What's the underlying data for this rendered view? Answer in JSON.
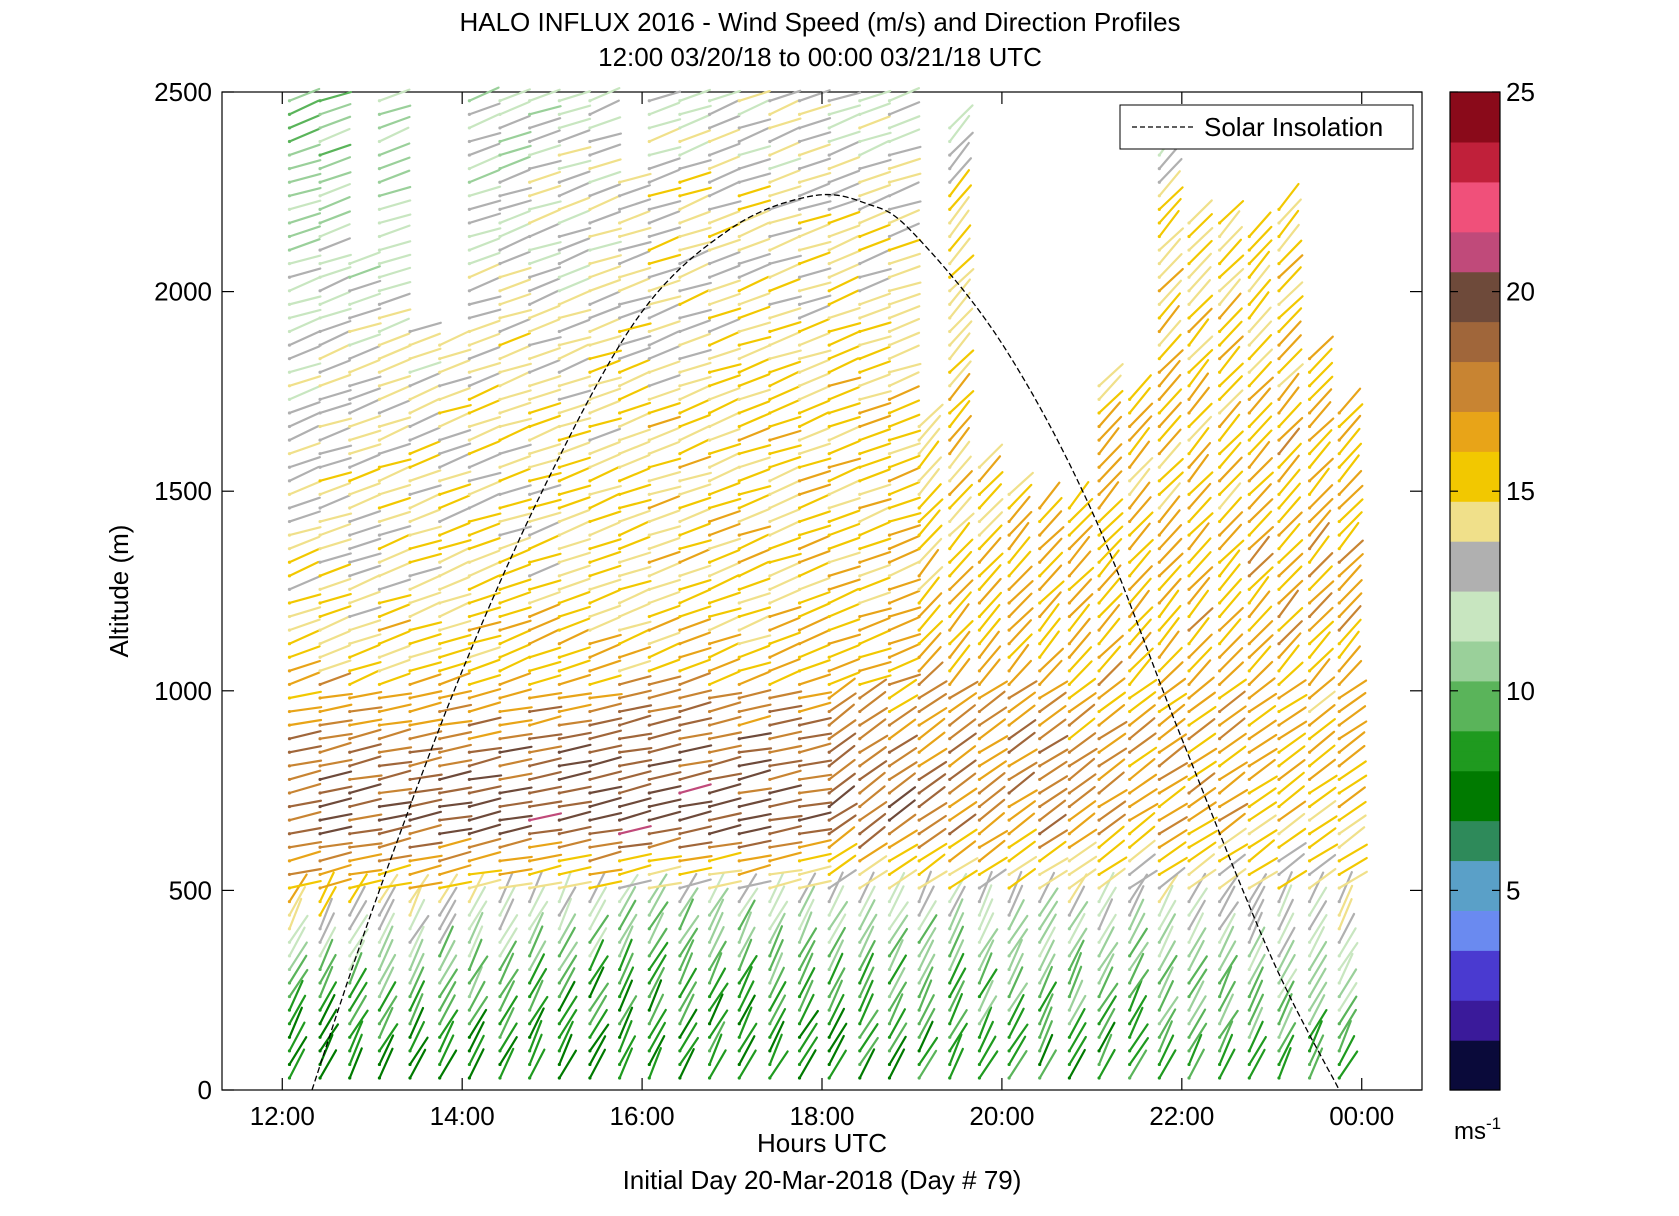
{
  "chart_data": {
    "type": "wind barb / vector profile",
    "title": "HALO INFLUX 2016 - Wind Speed (m/s) and Direction Profiles",
    "subtitle": "12:00 03/20/18 to 00:00 03/21/18  UTC",
    "xlabel": "Hours UTC",
    "footer": "Initial Day 20-Mar-2018 (Day # 79)",
    "ylabel": "Altitude (m)",
    "x_ticks": [
      "12:00",
      "14:00",
      "16:00",
      "18:00",
      "20:00",
      "22:00",
      "00:00"
    ],
    "x_tick_hours": [
      12,
      14,
      16,
      18,
      20,
      22,
      24
    ],
    "xlim_hours": [
      11.33,
      24.67
    ],
    "y_ticks": [
      0,
      500,
      1000,
      1500,
      2000,
      2500
    ],
    "ylim": [
      0,
      2500
    ],
    "legend": {
      "entries": [
        "Solar Insolation"
      ],
      "location": "top-right"
    },
    "solar_insolation": {
      "style": "dashed",
      "color": "#000000",
      "points": [
        [
          12.33,
          0
        ],
        [
          13.0,
          450
        ],
        [
          14.0,
          1050
        ],
        [
          15.0,
          1550
        ],
        [
          16.0,
          1950
        ],
        [
          17.0,
          2160
        ],
        [
          17.9,
          2240
        ],
        [
          18.5,
          2220
        ],
        [
          19.0,
          2150
        ],
        [
          20.0,
          1870
        ],
        [
          21.0,
          1450
        ],
        [
          22.0,
          880
        ],
        [
          23.0,
          330
        ],
        [
          23.75,
          0
        ]
      ]
    },
    "colorbar": {
      "label": "ms-1",
      "ticks": [
        5,
        10,
        15,
        20,
        25
      ],
      "range": [
        0,
        25
      ],
      "colors": [
        "#0a0a3a",
        "#3a1a9a",
        "#4a3ad0",
        "#6a8af0",
        "#5aa0c8",
        "#2e8a5a",
        "#007a00",
        "#1f9a1f",
        "#5ab45a",
        "#9ad09a",
        "#c8e6c0",
        "#b0b0b0",
        "#f0e08a",
        "#f2c800",
        "#e8a418",
        "#c88432",
        "#a0663a",
        "#6e4a3a",
        "#c04a7a",
        "#f0507a",
        "#c0203a",
        "#8a0a1a"
      ]
    },
    "wind_field_description_note": "",
    "profile_times_hours": [
      12.08,
      12.42,
      12.75,
      13.08,
      13.42,
      13.75,
      14.08,
      14.42,
      14.75,
      15.08,
      15.42,
      15.75,
      16.08,
      16.42,
      16.75,
      17.08,
      17.42,
      17.75,
      18.08,
      18.42,
      18.75,
      19.08,
      19.42,
      19.75,
      20.08,
      20.42,
      20.75,
      21.08,
      21.42,
      21.75,
      22.08,
      22.42,
      22.75,
      23.08,
      23.42,
      23.75
    ],
    "profile_top_altitude_m": [
      2480,
      2480,
      2100,
      2480,
      1900,
      1880,
      2480,
      2480,
      2480,
      2480,
      2480,
      2300,
      2480,
      2480,
      2480,
      2480,
      2480,
      2480,
      2480,
      2480,
      2480,
      1680,
      2420,
      1560,
      1500,
      1480,
      1460,
      1780,
      1760,
      2360,
      2200,
      2200,
      2160,
      2220,
      1860,
      1720
    ],
    "speed_profile_by_altitude": {
      "altitude_m": [
        50,
        250,
        450,
        650,
        850,
        1050,
        1250,
        1450,
        1650,
        1850,
        2050,
        2250,
        2450
      ],
      "speed_ms_early": [
        8,
        9.5,
        15,
        19,
        18,
        15.5,
        14,
        14,
        13.5,
        13,
        12,
        11,
        10
      ],
      "speed_ms_mid": [
        8,
        9,
        11,
        20,
        19,
        16,
        15,
        15,
        15,
        14.5,
        14,
        14,
        13
      ],
      "speed_ms_late": [
        9,
        11,
        13.5,
        15,
        15.5,
        16,
        16.5,
        16,
        16,
        15.5,
        15,
        14,
        11
      ]
    }
  }
}
